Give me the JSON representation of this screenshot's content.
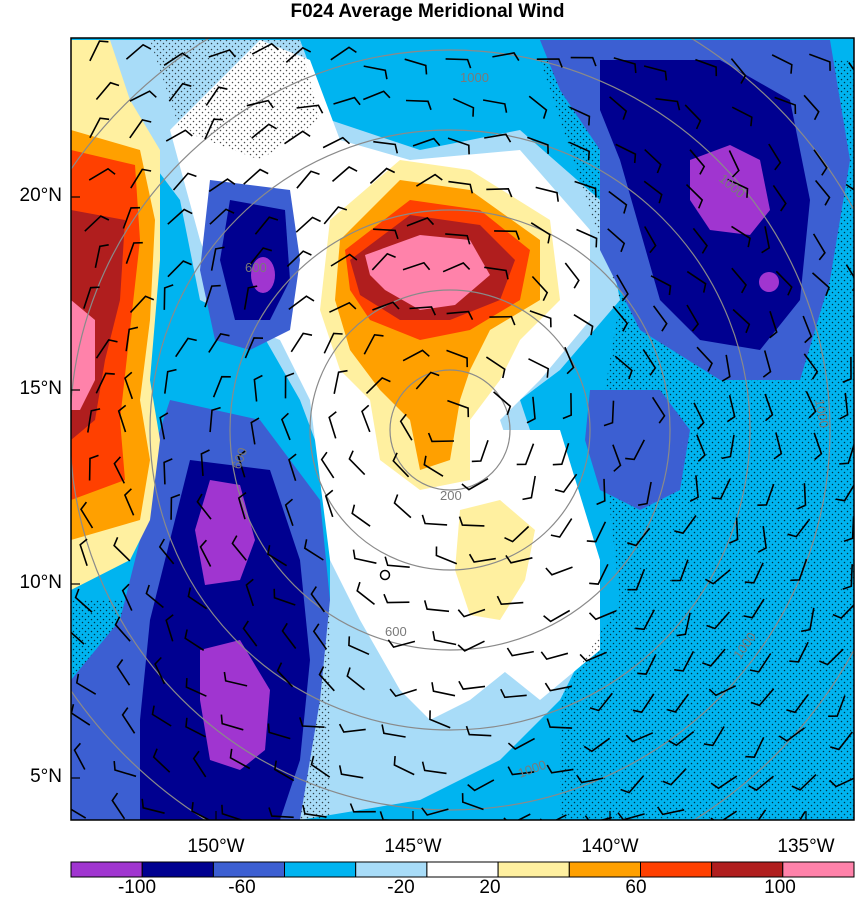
{
  "title": "F024 Average Meridional Wind",
  "lat_labels": [
    "20°N",
    "15°N",
    "10°N",
    "5°N"
  ],
  "lon_labels": [
    "150°W",
    "145°W",
    "140°W",
    "135°W"
  ],
  "range_ring_labels": [
    "200",
    "600",
    "600",
    "600",
    "1000",
    "1000",
    "1000",
    "1000",
    "1000"
  ],
  "colorbar": {
    "labels": [
      "-100",
      "-60",
      "-20",
      "20",
      "60",
      "100"
    ],
    "colors": [
      "#a035d0",
      "#000090",
      "#3c5fd2",
      "#00b4f0",
      "#a8dcf8",
      "#ffffff",
      "#fff0a0",
      "#ffa000",
      "#ff4000",
      "#b01e1e",
      "#ff82aa"
    ]
  }
}
